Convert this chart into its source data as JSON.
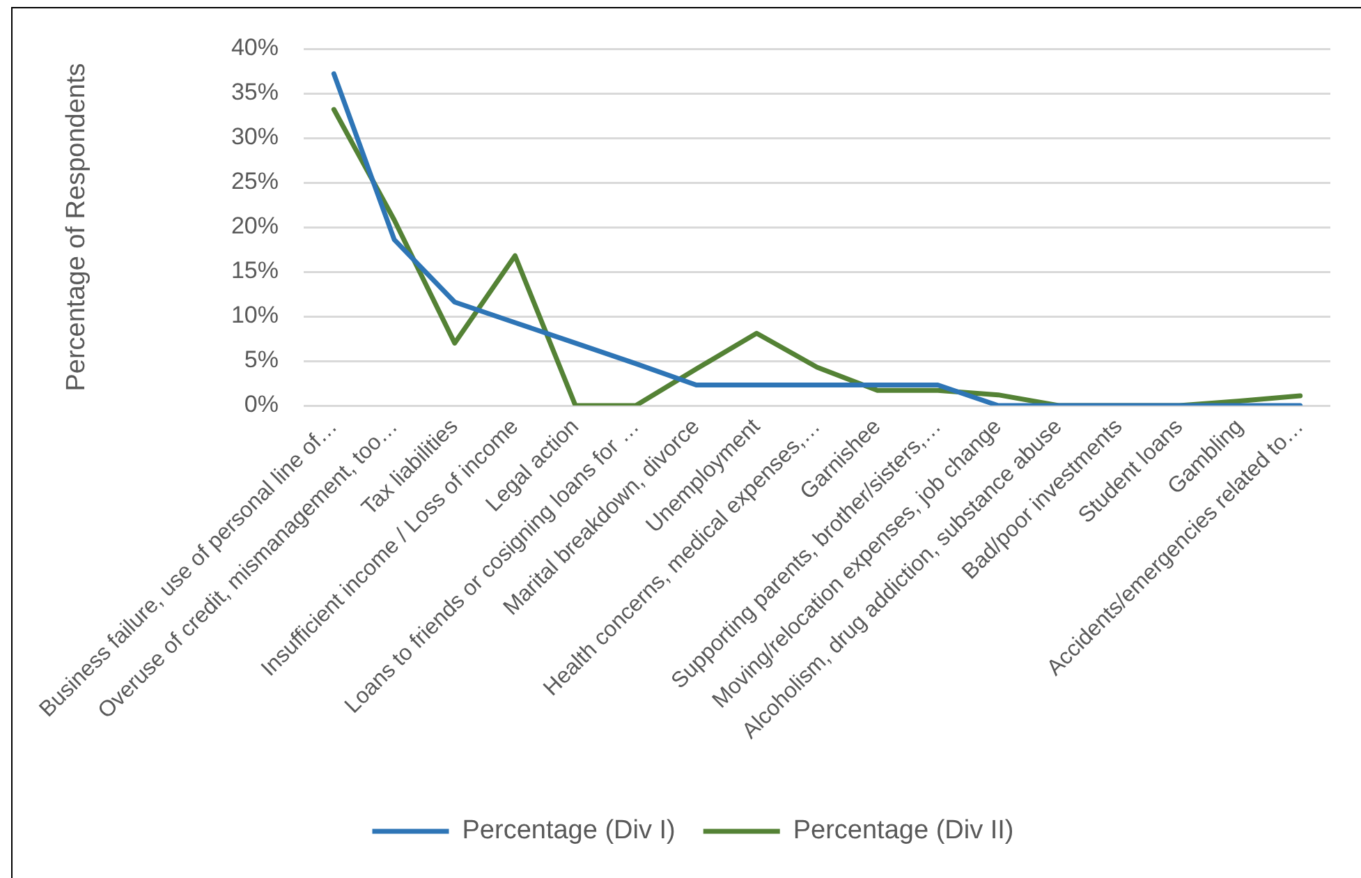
{
  "chart_data": {
    "type": "line",
    "ylabel": "Percentage of Respondents",
    "categories": [
      "Business failure, use of personal line of…",
      "Overuse of credit, mismanagement, too…",
      "Tax liabilities",
      "Insufficient income / Loss of income",
      "Legal action",
      "Loans to friends or cosigning loans for …",
      "Marital breakdown, divorce",
      "Unemployment",
      "Health concerns, medical expenses,…",
      "Garnishee",
      "Supporting parents, brother/sisters,…",
      "Moving/relocation expenses, job change",
      "Alcoholism, drug addiction, substance abuse",
      "Bad/poor investments",
      "Student loans",
      "Gambling",
      "Accidents/emergencies related to…"
    ],
    "series": [
      {
        "name": "Percentage (Div I)",
        "color": "#2e75b6",
        "values": [
          37.2,
          18.6,
          11.6,
          9.3,
          7.0,
          4.7,
          2.3,
          2.3,
          2.3,
          2.3,
          2.3,
          0,
          0,
          0,
          0,
          0,
          0
        ]
      },
      {
        "name": "Percentage (Div II)",
        "color": "#548235",
        "values": [
          33.2,
          20.8,
          7.0,
          16.8,
          0,
          0,
          4.1,
          8.1,
          4.3,
          1.7,
          1.7,
          1.2,
          0,
          0,
          0,
          0.5,
          1.1
        ]
      }
    ],
    "ylim": [
      0,
      40
    ],
    "yticks": [
      {
        "value": 0,
        "label": "0%"
      },
      {
        "value": 5,
        "label": "5%"
      },
      {
        "value": 10,
        "label": "10%"
      },
      {
        "value": 15,
        "label": "15%"
      },
      {
        "value": 20,
        "label": "20%"
      },
      {
        "value": 25,
        "label": "25%"
      },
      {
        "value": 30,
        "label": "30%"
      },
      {
        "value": 35,
        "label": "35%"
      },
      {
        "value": 40,
        "label": "40%"
      }
    ],
    "grid": "y",
    "legend": "bottom",
    "marker": "none",
    "line_style": "solid"
  }
}
